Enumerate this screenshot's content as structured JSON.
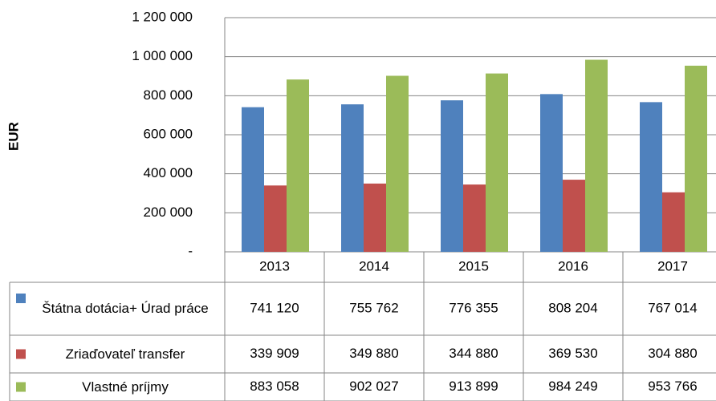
{
  "chart_data": {
    "type": "bar",
    "y_label": "EUR",
    "categories": [
      "2013",
      "2014",
      "2015",
      "2016",
      "2017"
    ],
    "series": [
      {
        "name": "Štátna dotácia+ Úrad práce",
        "color": "#4f81bd",
        "values": [
          741120,
          755762,
          776355,
          808204,
          767014
        ],
        "value_labels": [
          "741 120",
          "755 762",
          "776 355",
          "808 204",
          "767 014"
        ]
      },
      {
        "name": "Zriaďovateľ transfer",
        "color": "#c0504d",
        "values": [
          339909,
          349880,
          344880,
          369530,
          304880
        ],
        "value_labels": [
          "339 909",
          "349 880",
          "344 880",
          "369 530",
          "304 880"
        ]
      },
      {
        "name": "Vlastné príjmy",
        "color": "#9bbb59",
        "values": [
          883058,
          902027,
          913899,
          984249,
          953766
        ],
        "value_labels": [
          "883 058",
          "902 027",
          "913 899",
          "984 249",
          "953 766"
        ]
      }
    ],
    "ylim": [
      0,
      1200000
    ],
    "yticks": [
      {
        "value": 0,
        "label": "-"
      },
      {
        "value": 200000,
        "label": "200 000"
      },
      {
        "value": 400000,
        "label": "400 000"
      },
      {
        "value": 600000,
        "label": "600 000"
      },
      {
        "value": 800000,
        "label": "800 000"
      },
      {
        "value": 1000000,
        "label": "1 000 000"
      },
      {
        "value": 1200000,
        "label": "1 200 000"
      }
    ],
    "grid": true
  }
}
